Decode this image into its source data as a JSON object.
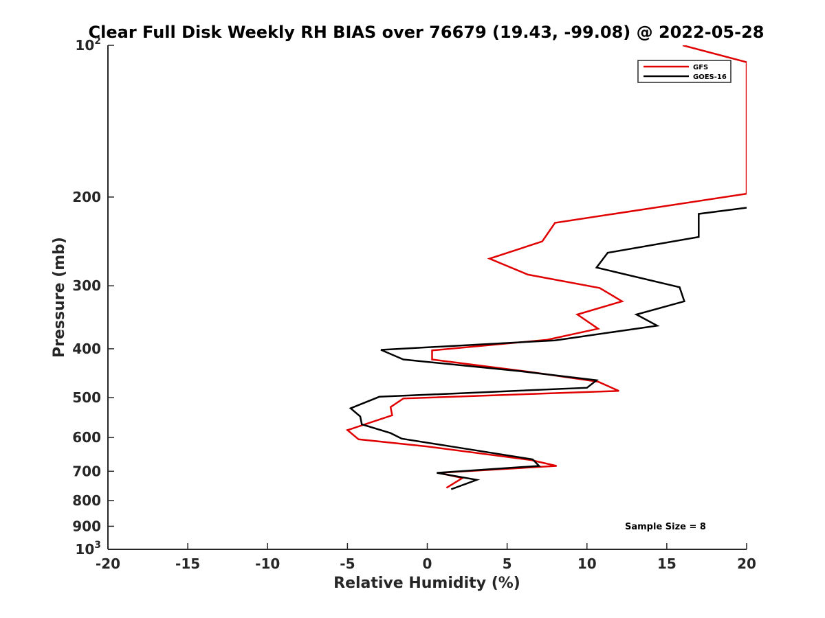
{
  "chart_data": {
    "type": "line",
    "title": "Clear Full Disk Weekly RH BIAS over 76679 (19.43, -99.08) @ 2022-05-28",
    "xlabel": "Relative Humidity (%)",
    "ylabel": "Pressure (mb)",
    "xlim": [
      -20,
      20
    ],
    "ylim": [
      100,
      1000
    ],
    "y_scale": "log",
    "y_reversed": true,
    "x_ticks": [
      "-20",
      "-15",
      "-10",
      "-5",
      "0",
      "5",
      "10",
      "15",
      "20"
    ],
    "y_ticks": [
      {
        "value": 100,
        "label": "10",
        "sup": "2"
      },
      {
        "value": 200,
        "label": "200",
        "sup": ""
      },
      {
        "value": 300,
        "label": "300",
        "sup": ""
      },
      {
        "value": 400,
        "label": "400",
        "sup": ""
      },
      {
        "value": 500,
        "label": "500",
        "sup": ""
      },
      {
        "value": 600,
        "label": "600",
        "sup": ""
      },
      {
        "value": 700,
        "label": "700",
        "sup": ""
      },
      {
        "value": 800,
        "label": "800",
        "sup": ""
      },
      {
        "value": 900,
        "label": "900",
        "sup": ""
      },
      {
        "value": 1000,
        "label": "10",
        "sup": "3"
      }
    ],
    "grid": false,
    "legend": "top-right",
    "series": [
      {
        "name": "GFS",
        "color": "#e00000",
        "points": [
          {
            "x": 16.0,
            "p": 100
          },
          {
            "x": 20.0,
            "p": 108
          },
          {
            "x": 20.0,
            "p": 197
          },
          {
            "x": 8.0,
            "p": 225
          },
          {
            "x": 7.2,
            "p": 245
          },
          {
            "x": 3.9,
            "p": 265
          },
          {
            "x": 6.3,
            "p": 285
          },
          {
            "x": 10.8,
            "p": 303
          },
          {
            "x": 12.2,
            "p": 322
          },
          {
            "x": 9.4,
            "p": 342
          },
          {
            "x": 10.7,
            "p": 365
          },
          {
            "x": 7.5,
            "p": 384
          },
          {
            "x": 0.3,
            "p": 403
          },
          {
            "x": 0.3,
            "p": 420
          },
          {
            "x": 6.5,
            "p": 445
          },
          {
            "x": 10.7,
            "p": 465
          },
          {
            "x": 12.0,
            "p": 485
          },
          {
            "x": -1.5,
            "p": 502
          },
          {
            "x": -2.3,
            "p": 522
          },
          {
            "x": -2.2,
            "p": 542
          },
          {
            "x": -5.0,
            "p": 580
          },
          {
            "x": -4.3,
            "p": 605
          },
          {
            "x": 0.0,
            "p": 625
          },
          {
            "x": 6.5,
            "p": 665
          },
          {
            "x": 8.1,
            "p": 683
          },
          {
            "x": 0.7,
            "p": 705
          },
          {
            "x": 2.2,
            "p": 722
          },
          {
            "x": 1.2,
            "p": 755
          }
        ]
      },
      {
        "name": "GOES-16",
        "color": "#000000",
        "points": [
          {
            "x": 20.0,
            "p": 210
          },
          {
            "x": 17.0,
            "p": 216
          },
          {
            "x": 17.0,
            "p": 240
          },
          {
            "x": 11.3,
            "p": 258
          },
          {
            "x": 10.6,
            "p": 276
          },
          {
            "x": 15.8,
            "p": 302
          },
          {
            "x": 16.1,
            "p": 322
          },
          {
            "x": 13.1,
            "p": 342
          },
          {
            "x": 14.4,
            "p": 360
          },
          {
            "x": 8.0,
            "p": 385
          },
          {
            "x": -2.9,
            "p": 402
          },
          {
            "x": -1.5,
            "p": 420
          },
          {
            "x": 5.8,
            "p": 443
          },
          {
            "x": 10.6,
            "p": 462
          },
          {
            "x": 10.0,
            "p": 478
          },
          {
            "x": -3.0,
            "p": 498
          },
          {
            "x": -4.8,
            "p": 525
          },
          {
            "x": -4.2,
            "p": 545
          },
          {
            "x": -4.1,
            "p": 565
          },
          {
            "x": -2.3,
            "p": 588
          },
          {
            "x": -1.6,
            "p": 603
          },
          {
            "x": 1.5,
            "p": 625
          },
          {
            "x": 6.6,
            "p": 663
          },
          {
            "x": 7.0,
            "p": 683
          },
          {
            "x": 0.6,
            "p": 705
          },
          {
            "x": 3.1,
            "p": 728
          },
          {
            "x": 1.5,
            "p": 760
          }
        ]
      }
    ],
    "annotations": [
      {
        "text": "Sample Size = 8"
      }
    ]
  }
}
